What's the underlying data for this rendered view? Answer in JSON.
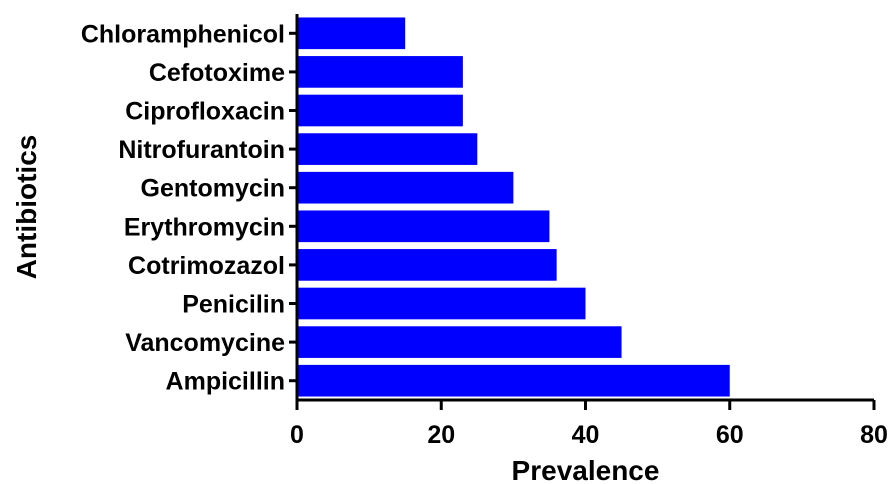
{
  "chart_data": {
    "type": "bar",
    "orientation": "horizontal",
    "title": "",
    "xlabel": "Prevalence",
    "ylabel": "Antibiotics",
    "xlim": [
      0,
      80
    ],
    "xticks": [
      0,
      20,
      40,
      60,
      80
    ],
    "grid": false,
    "legend": "none",
    "bar_color": "#0000ff",
    "categories": [
      "Chloramphenicol",
      "Cefotoxime",
      "Ciprofloxacin",
      "Nitrofurantoin",
      "Gentomycin",
      "Erythromycin",
      "Cotrimozazol",
      "Penicilin",
      "Vancomycine",
      "Ampicillin"
    ],
    "values": [
      15,
      23,
      23,
      25,
      30,
      35,
      36,
      40,
      45,
      60
    ]
  }
}
